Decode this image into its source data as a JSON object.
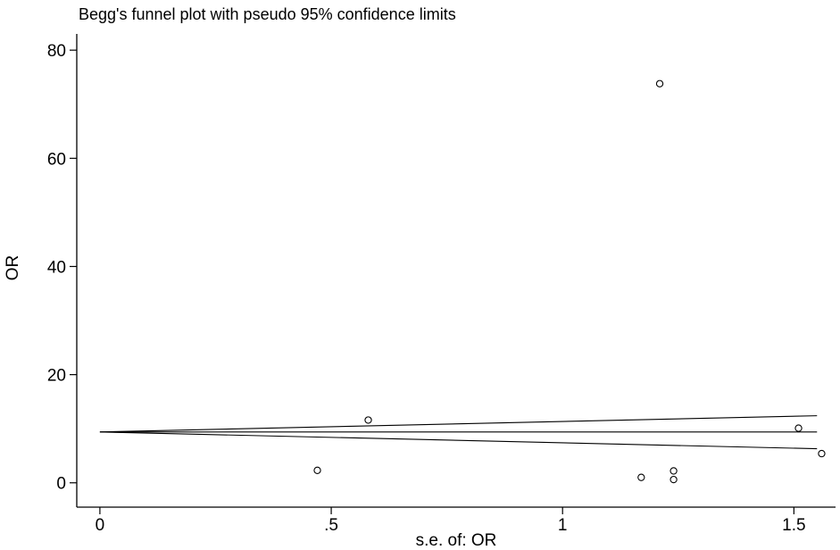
{
  "chart_data": {
    "type": "scatter",
    "title": "Begg's funnel plot with pseudo 95% confidence limits",
    "xlabel": "s.e. of: OR",
    "ylabel": "OR",
    "xlim": [
      -0.05,
      1.59
    ],
    "ylim": [
      -4.5,
      83
    ],
    "xticks": [
      0,
      0.5,
      1,
      1.5
    ],
    "xtick_labels": [
      "0",
      ".5",
      "1",
      "1.5"
    ],
    "yticks": [
      0,
      20,
      40,
      60,
      80
    ],
    "ytick_labels": [
      "0",
      "20",
      "40",
      "60",
      "80"
    ],
    "grid": false,
    "legend": "none",
    "points": [
      {
        "x": 0.47,
        "y": 2.3
      },
      {
        "x": 0.58,
        "y": 11.6
      },
      {
        "x": 1.17,
        "y": 1.0
      },
      {
        "x": 1.21,
        "y": 73.8
      },
      {
        "x": 1.24,
        "y": 2.2
      },
      {
        "x": 1.24,
        "y": 0.6
      },
      {
        "x": 1.51,
        "y": 10.1
      },
      {
        "x": 1.56,
        "y": 5.4
      }
    ],
    "pooled_estimate": 9.4,
    "pseudo_ci_limits": {
      "x": [
        0,
        1.55
      ],
      "upper": [
        9.4,
        12.4
      ],
      "lower": [
        9.4,
        6.3
      ]
    }
  }
}
